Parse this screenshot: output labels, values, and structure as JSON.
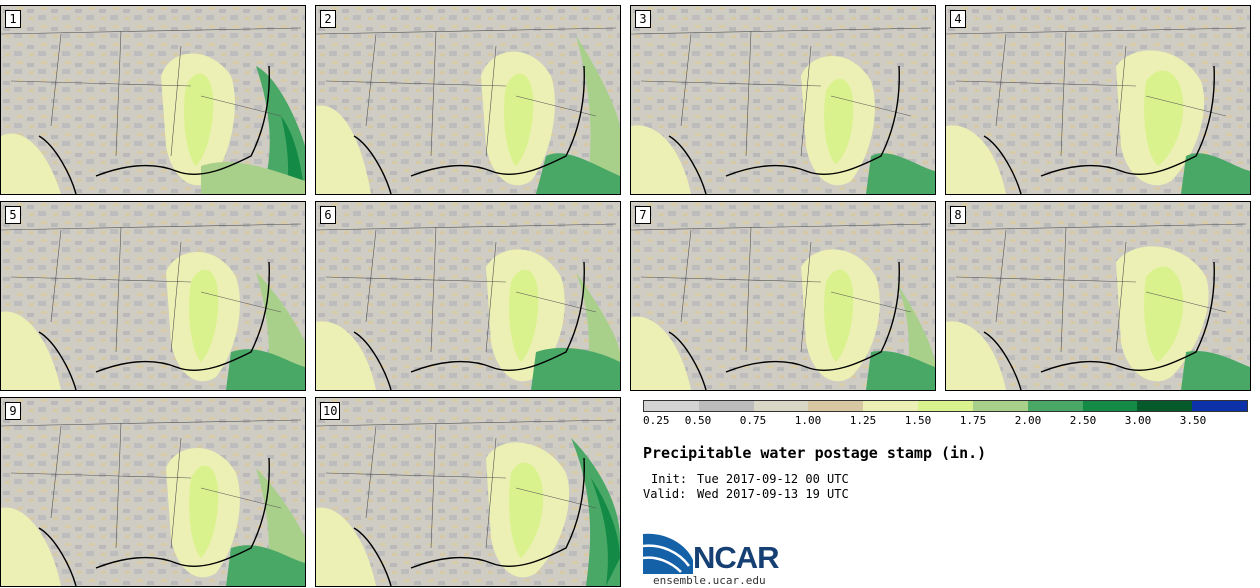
{
  "map": {
    "title": "Precipitable water postage stamp (in.)",
    "init_label": "Init:",
    "init_value": "Tue 2017-09-12 00 UTC",
    "valid_label": "Valid:",
    "valid_value": "Wed 2017-09-13 19 UTC",
    "members": [
      "1",
      "2",
      "3",
      "4",
      "5",
      "6",
      "7",
      "8",
      "9",
      "10"
    ]
  },
  "legend": {
    "ticks": [
      "0.25",
      "0.50",
      "0.75",
      "1.00",
      "1.25",
      "1.50",
      "1.75",
      "2.00",
      "2.50",
      "3.00",
      "3.50"
    ],
    "colors": [
      "#d4d4d4",
      "#bcbcbc",
      "#d9d7c6",
      "#d8c7a3",
      "#ecf0b4",
      "#daf28e",
      "#a8d08a",
      "#4aa866",
      "#138a46",
      "#045a2b",
      "#0d31a8"
    ]
  },
  "branding": {
    "logo_text": "NCAR",
    "site": "ensemble.ucar.edu",
    "colors": {
      "logo_blue": "#1461a8",
      "logo_text": "#163f73"
    }
  }
}
